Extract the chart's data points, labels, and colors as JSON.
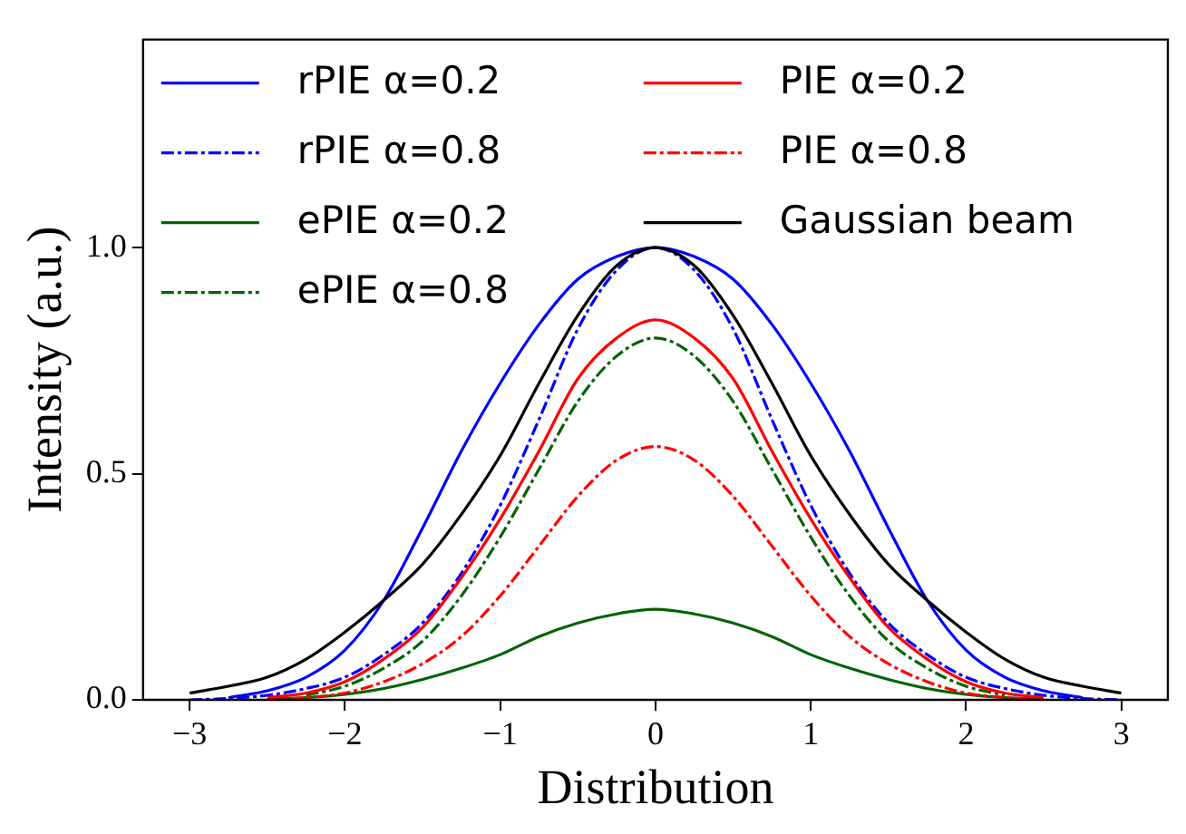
{
  "chart_data": {
    "type": "line",
    "xlabel": "Distribution",
    "ylabel": "Intensity (a.u.)",
    "x": [
      -3,
      -2.75,
      -2.5,
      -2.25,
      -2,
      -1.75,
      -1.5,
      -1.25,
      -1,
      -0.75,
      -0.5,
      -0.25,
      0,
      0.25,
      0.5,
      0.75,
      1,
      1.25,
      1.5,
      1.75,
      2,
      2.25,
      2.5,
      2.75,
      3
    ],
    "xlim": [
      -3.3,
      3.3
    ],
    "xticks": [
      {
        "value": -3,
        "label": "−3"
      },
      {
        "value": -2,
        "label": "−2"
      },
      {
        "value": -1,
        "label": "−1"
      },
      0,
      1,
      2,
      3
    ],
    "ylim": [
      0,
      1.46
    ],
    "yticks": [
      {
        "value": 0,
        "label": "0.0"
      },
      {
        "value": 0.5,
        "label": "0.5"
      },
      {
        "value": 1,
        "label": "1.0"
      }
    ],
    "grid": false,
    "legend": "top left",
    "marker": "none",
    "series": [
      {
        "name": "rPIE α=0.2",
        "color": "#0000ff",
        "line_style": "solid",
        "values": [
          null,
          0.005,
          0.02,
          0.05,
          0.11,
          0.22,
          0.38,
          0.55,
          0.7,
          0.83,
          0.93,
          0.98,
          1,
          0.98,
          0.93,
          0.83,
          0.7,
          0.55,
          0.38,
          0.22,
          0.11,
          0.05,
          0.02,
          0.005,
          null
        ]
      },
      {
        "name": "rPIE α=0.8",
        "color": "#0000ff",
        "line_style": "dashdot",
        "values": [
          0,
          0.003,
          0.01,
          0.025,
          0.05,
          0.1,
          0.17,
          0.28,
          0.43,
          0.62,
          0.82,
          0.95,
          1,
          0.95,
          0.82,
          0.62,
          0.43,
          0.28,
          0.17,
          0.1,
          0.05,
          0.025,
          0.01,
          0.003,
          0
        ]
      },
      {
        "name": "ePIE α=0.2",
        "color": "#006400",
        "line_style": "solid",
        "values": [
          null,
          null,
          0.002,
          0.005,
          0.012,
          0.025,
          0.045,
          0.07,
          0.1,
          0.14,
          0.17,
          0.19,
          0.2,
          0.19,
          0.17,
          0.14,
          0.1,
          0.07,
          0.045,
          0.025,
          0.012,
          0.005,
          0.002,
          null,
          null
        ]
      },
      {
        "name": "ePIE α=0.8",
        "color": "#006400",
        "line_style": "dashdot",
        "values": [
          null,
          null,
          null,
          0.01,
          0.03,
          0.07,
          0.13,
          0.23,
          0.36,
          0.51,
          0.66,
          0.76,
          0.8,
          0.76,
          0.66,
          0.51,
          0.36,
          0.23,
          0.13,
          0.07,
          0.03,
          0.01,
          null,
          null,
          null
        ]
      },
      {
        "name": "PIE α=0.2",
        "color": "#ff0000",
        "line_style": "solid",
        "values": [
          null,
          null,
          0.005,
          0.015,
          0.04,
          0.09,
          0.16,
          0.27,
          0.4,
          0.55,
          0.71,
          0.8,
          0.84,
          0.8,
          0.71,
          0.55,
          0.4,
          0.27,
          0.16,
          0.09,
          0.04,
          0.015,
          0.005,
          null,
          null
        ]
      },
      {
        "name": "PIE α=0.8",
        "color": "#ff0000",
        "line_style": "dashdot",
        "values": [
          null,
          null,
          0,
          0.005,
          0.015,
          0.04,
          0.08,
          0.14,
          0.23,
          0.34,
          0.45,
          0.53,
          0.56,
          0.53,
          0.45,
          0.34,
          0.23,
          0.14,
          0.08,
          0.04,
          0.015,
          0.005,
          0,
          null,
          null
        ]
      },
      {
        "name": "Gaussian beam",
        "color": "#000000",
        "line_style": "solid",
        "values": [
          0.015,
          0.03,
          0.05,
          0.09,
          0.15,
          0.22,
          0.3,
          0.41,
          0.54,
          0.7,
          0.85,
          0.96,
          1,
          0.96,
          0.85,
          0.7,
          0.54,
          0.41,
          0.3,
          0.22,
          0.15,
          0.09,
          0.05,
          0.03,
          0.015
        ]
      }
    ]
  }
}
